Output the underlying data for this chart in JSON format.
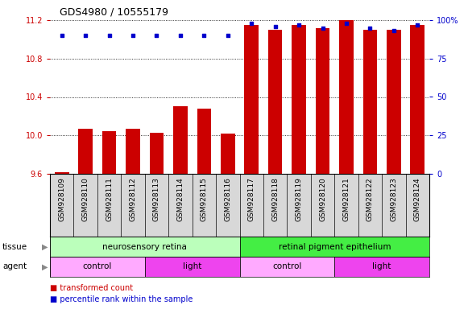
{
  "title": "GDS4980 / 10555179",
  "samples": [
    "GSM928109",
    "GSM928110",
    "GSM928111",
    "GSM928112",
    "GSM928113",
    "GSM928114",
    "GSM928115",
    "GSM928116",
    "GSM928117",
    "GSM928118",
    "GSM928119",
    "GSM928120",
    "GSM928121",
    "GSM928122",
    "GSM928123",
    "GSM928124"
  ],
  "transformed_count": [
    9.62,
    10.07,
    10.04,
    10.07,
    10.03,
    10.3,
    10.28,
    10.02,
    11.15,
    11.1,
    11.15,
    11.12,
    11.22,
    11.1,
    11.1,
    11.15
  ],
  "percentile_rank": [
    90,
    90,
    90,
    90,
    90,
    90,
    90,
    90,
    98,
    96,
    97,
    95,
    98,
    95,
    93,
    97
  ],
  "ylim_left": [
    9.6,
    11.2
  ],
  "ylim_right": [
    0,
    100
  ],
  "yticks_left": [
    9.6,
    10.0,
    10.4,
    10.8,
    11.2
  ],
  "yticks_right": [
    0,
    25,
    50,
    75,
    100
  ],
  "bar_color": "#cc0000",
  "dot_color": "#0000cc",
  "tissue_groups": [
    {
      "label": "neurosensory retina",
      "start": 0,
      "end": 7,
      "color": "#bbffbb"
    },
    {
      "label": "retinal pigment epithelium",
      "start": 8,
      "end": 15,
      "color": "#44ee44"
    }
  ],
  "agent_groups": [
    {
      "label": "control",
      "start": 0,
      "end": 3,
      "color": "#ffaaff"
    },
    {
      "label": "light",
      "start": 4,
      "end": 7,
      "color": "#ee44ee"
    },
    {
      "label": "control",
      "start": 8,
      "end": 11,
      "color": "#ffaaff"
    },
    {
      "label": "light",
      "start": 12,
      "end": 15,
      "color": "#ee44ee"
    }
  ],
  "background_color": "#ffffff",
  "label_color_left": "#cc0000",
  "label_color_right": "#0000cc",
  "xtick_bg": "#d8d8d8",
  "tissue_label_color": "#888888",
  "agent_label_color": "#888888"
}
